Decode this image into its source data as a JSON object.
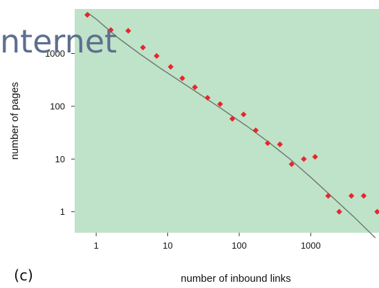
{
  "overlay_title": "nternet",
  "panel_label": "(c)",
  "chart_data": {
    "type": "scatter",
    "xlabel": "number of inbound links",
    "ylabel": "number of pages",
    "x_scale": "log",
    "y_scale": "log",
    "xlim": [
      0.5,
      9000
    ],
    "ylim": [
      0.4,
      7000
    ],
    "x_ticks": [
      {
        "value": 1,
        "label": "1"
      },
      {
        "value": 10,
        "label": "10"
      },
      {
        "value": 100,
        "label": "100"
      },
      {
        "value": 1000,
        "label": "1000"
      }
    ],
    "y_ticks": [
      {
        "value": 1,
        "label": "1"
      },
      {
        "value": 10,
        "label": "10"
      },
      {
        "value": 100,
        "label": "100"
      },
      {
        "value": 1000,
        "label": "1000"
      }
    ],
    "background_color": "#bfe3c9",
    "marker_color": "#e8262b",
    "fit_line_color": "#707a70",
    "series": [
      {
        "points": [
          [
            0.75,
            5400
          ],
          [
            1.6,
            2800
          ],
          [
            2.8,
            2700
          ],
          [
            4.5,
            1300
          ],
          [
            7,
            900
          ],
          [
            11,
            560
          ],
          [
            16,
            340
          ],
          [
            24,
            230
          ],
          [
            36,
            145
          ],
          [
            54,
            110
          ],
          [
            80,
            58
          ],
          [
            115,
            70
          ],
          [
            170,
            35
          ],
          [
            250,
            20
          ],
          [
            370,
            19
          ],
          [
            540,
            8
          ],
          [
            800,
            10
          ],
          [
            1150,
            11
          ],
          [
            1750,
            2
          ],
          [
            2500,
            1
          ],
          [
            3700,
            2
          ],
          [
            5500,
            2
          ],
          [
            8500,
            1
          ]
        ]
      }
    ],
    "fit_line": [
      [
        0.75,
        6000
      ],
      [
        1,
        4500
      ],
      [
        2,
        2000
      ],
      [
        4,
        1000
      ],
      [
        8,
        520
      ],
      [
        16,
        280
      ],
      [
        32,
        150
      ],
      [
        64,
        80
      ],
      [
        128,
        42
      ],
      [
        256,
        21
      ],
      [
        512,
        10
      ],
      [
        1000,
        4.5
      ],
      [
        2000,
        1.9
      ],
      [
        4000,
        0.8
      ],
      [
        8000,
        0.32
      ]
    ]
  }
}
